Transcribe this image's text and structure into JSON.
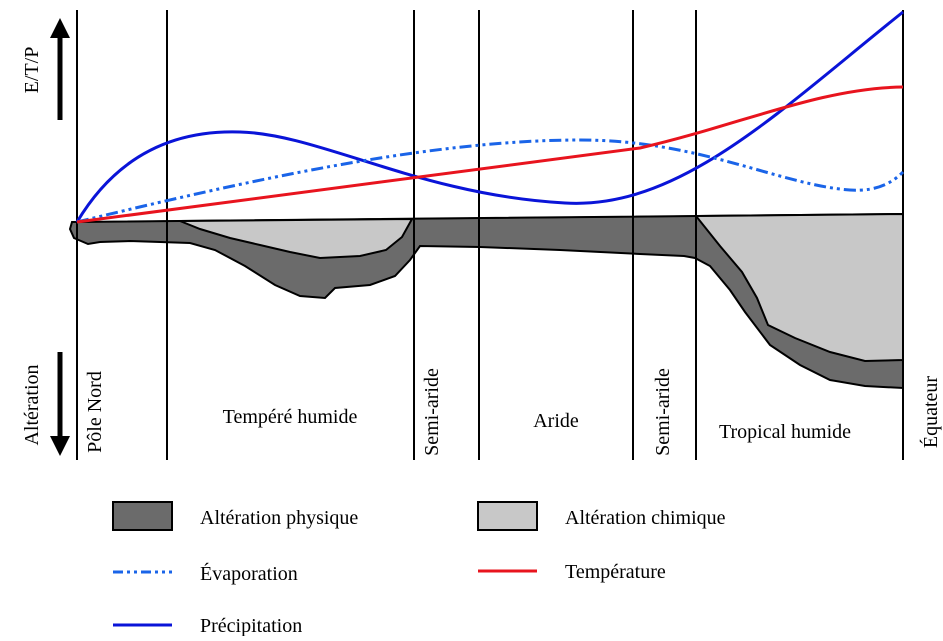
{
  "axis": {
    "top": "E/T/P",
    "bottom": "Altération"
  },
  "zones": [
    "Pôle Nord",
    "Tempéré humide",
    "Semi-aride",
    "Aride",
    "Semi-aride",
    "Tropical humide",
    "Équateur"
  ],
  "legend": [
    "Altération physique",
    "Altération chimique",
    "Évaporation",
    "Température",
    "Précipitation"
  ]
}
